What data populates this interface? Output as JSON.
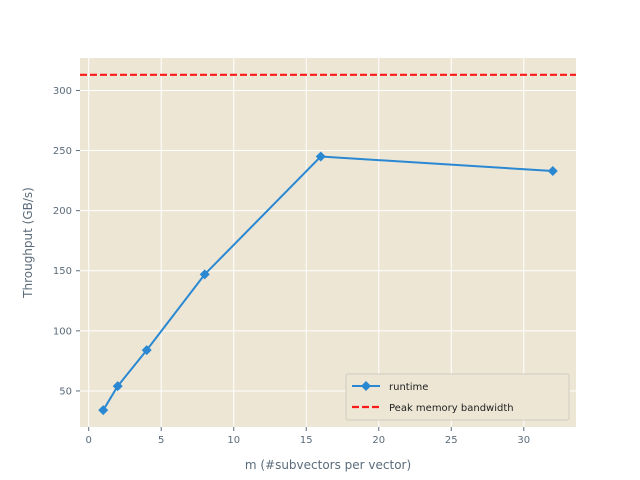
{
  "chart_data": {
    "type": "line",
    "title": "",
    "xlabel": "m (#subvectors per vector)",
    "ylabel": "Throughput (GB/s)",
    "xlim": [
      -0.6,
      33.6
    ],
    "ylim": [
      20,
      327
    ],
    "xticks": [
      0,
      5,
      10,
      15,
      20,
      25,
      30
    ],
    "yticks": [
      50,
      100,
      150,
      200,
      250,
      300
    ],
    "grid": true,
    "legend_position": "lower-right",
    "background_color": "#ede6d5",
    "grid_color": "#ffffff",
    "series": [
      {
        "name": "runtime",
        "color": "#2a88d2",
        "marker": "diamond",
        "x": [
          1,
          2,
          4,
          8,
          16,
          32
        ],
        "y": [
          34,
          54,
          84,
          147,
          245,
          233
        ]
      }
    ],
    "reference_lines": [
      {
        "name": "Peak memory bandwidth",
        "orientation": "horizontal",
        "y": 313,
        "color": "#ff1a1a",
        "style": "dashed"
      }
    ]
  }
}
